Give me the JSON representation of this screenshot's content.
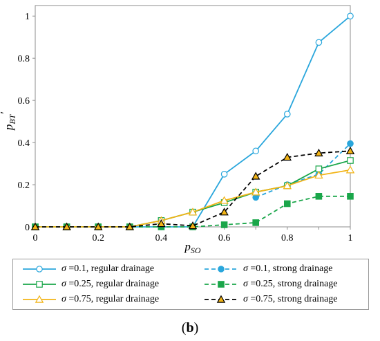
{
  "chart_data": {
    "type": "line",
    "x": [
      0,
      0.1,
      0.2,
      0.3,
      0.4,
      0.5,
      0.6,
      0.7,
      0.8,
      0.9,
      1
    ],
    "xlabel": "p",
    "xlabel_sub": "SO",
    "ylabel": "p",
    "ylabel_sub": "BT",
    "ylabel_prime": "′",
    "xlim": [
      0,
      1
    ],
    "ylim": [
      0,
      1.05
    ],
    "xticks": [
      "0",
      "0.2",
      "0.4",
      "0.6",
      "0.8",
      "1"
    ],
    "yticks": [
      "0",
      "0.2",
      "0.4",
      "0.6",
      "0.8",
      "1"
    ],
    "grid": false,
    "legend_position": "bottom",
    "series": [
      {
        "name": "σ =0.1, regular drainage",
        "symbol": "σ",
        "text": " =0.1, regular drainage",
        "color": "#29a6dc",
        "dash": "solid",
        "marker": "circle-open",
        "values": [
          0,
          0,
          0,
          0,
          0,
          0,
          0.25,
          0.36,
          0.535,
          0.875,
          1.0
        ]
      },
      {
        "name": "σ =0.1, strong drainage",
        "symbol": "σ",
        "text": " =0.1, strong drainage",
        "color": "#29a6dc",
        "dash": "dashed",
        "marker": "circle-filled",
        "values": [
          null,
          null,
          null,
          null,
          null,
          null,
          null,
          0.14,
          0.2,
          0.25,
          0.395
        ]
      },
      {
        "name": "σ =0.25, regular drainage",
        "symbol": "σ",
        "text": " =0.25, regular drainage",
        "color": "#1aa64a",
        "dash": "solid",
        "marker": "square-open",
        "values": [
          0,
          0,
          0,
          0,
          0.03,
          0.07,
          0.115,
          0.165,
          0.195,
          0.275,
          0.315
        ]
      },
      {
        "name": "σ =0.25, strong drainage",
        "symbol": "σ",
        "text": " =0.25, strong drainage",
        "color": "#1aa64a",
        "dash": "dashed",
        "marker": "square-filled",
        "values": [
          0,
          0,
          0,
          0,
          0,
          0,
          0.01,
          0.02,
          0.11,
          0.145,
          0.145
        ]
      },
      {
        "name": "σ =0.75, regular drainage",
        "symbol": "σ",
        "text": " =0.75, regular drainage",
        "color": "#f2b417",
        "dash": "solid",
        "marker": "triangle-open",
        "values": [
          0,
          0,
          0,
          0,
          0.03,
          0.07,
          0.125,
          0.165,
          0.195,
          0.245,
          0.27
        ]
      },
      {
        "name": "σ =0.75, strong drainage",
        "symbol": "σ",
        "text": " =0.75, strong drainage",
        "color": "#000000",
        "dash": "dashed",
        "marker": "triangle-filled",
        "fill": "#f2b417",
        "values": [
          0,
          0,
          0,
          0,
          0.015,
          0.005,
          0.07,
          0.24,
          0.33,
          0.35,
          0.36
        ]
      }
    ]
  },
  "panel_label": "(b)"
}
